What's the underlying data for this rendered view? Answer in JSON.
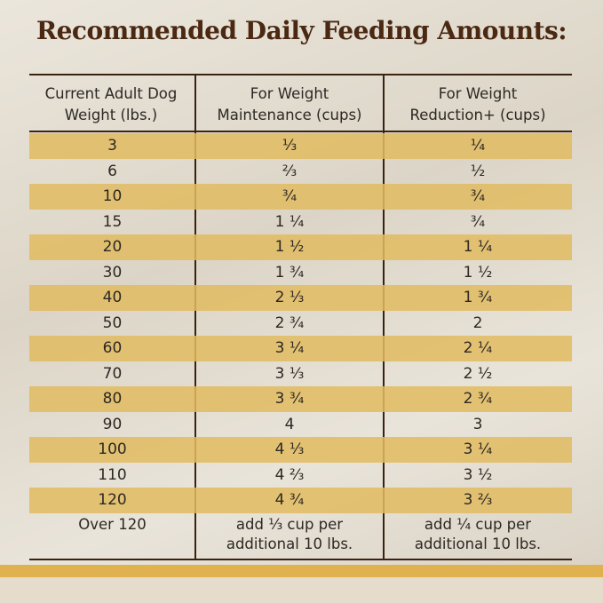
{
  "title": "Recommended Daily Feeding Amounts:",
  "headers": [
    "Current Adult Dog Weight (lbs.)",
    "For Weight Maintenance (cups)",
    "For Weight Reduction+ (cups)"
  ],
  "header_lines": [
    [
      "Current Adult Dog",
      "Weight (lbs.)"
    ],
    [
      "For Weight",
      "Maintenance (cups)"
    ],
    [
      "For Weight",
      "Reduction+ (cups)"
    ]
  ],
  "rows": [
    [
      "3",
      "⅓",
      "¼"
    ],
    [
      "6",
      "⅔",
      "½"
    ],
    [
      "10",
      "¾",
      "¾"
    ],
    [
      "15",
      "1 ¼",
      "¾"
    ],
    [
      "20",
      "1 ½",
      "1 ¼"
    ],
    [
      "30",
      "1 ¾",
      "1 ½"
    ],
    [
      "40",
      "2 ⅓",
      "1 ¾"
    ],
    [
      "50",
      "2 ¾",
      "2"
    ],
    [
      "60",
      "3 ¼",
      "2 ¼"
    ],
    [
      "70",
      "3 ⅓",
      "2 ½"
    ],
    [
      "80",
      "3 ¾",
      "2 ¾"
    ],
    [
      "90",
      "4",
      "3"
    ],
    [
      "100",
      "4 ⅓",
      "3 ¼"
    ],
    [
      "110",
      "4 ⅔",
      "3 ½"
    ],
    [
      "120",
      "4 ¾",
      "3 ⅔"
    ]
  ],
  "last_row": {
    "weight": "Over 120",
    "maintenance": [
      "add ⅓ cup per",
      "additional 10 lbs."
    ],
    "reduction": [
      "add ¼ cup per",
      "additional 10 lbs."
    ]
  },
  "colors": {
    "title": "#4a2812",
    "stripe": "#e2bb60",
    "rule": "#3a2210"
  }
}
